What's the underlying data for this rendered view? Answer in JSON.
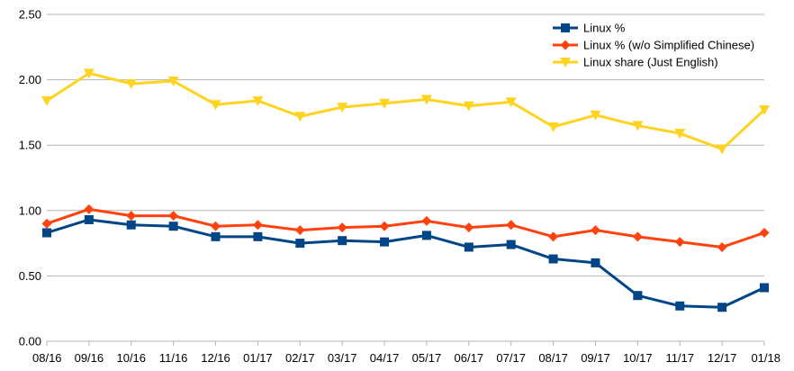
{
  "chart_data": {
    "type": "line",
    "categories": [
      "08/16",
      "09/16",
      "10/16",
      "11/16",
      "12/16",
      "01/17",
      "02/17",
      "03/17",
      "04/17",
      "05/17",
      "06/17",
      "07/17",
      "08/17",
      "09/17",
      "10/17",
      "11/17",
      "12/17",
      "01/18"
    ],
    "y_ticks": [
      "0.00",
      "0.50",
      "1.00",
      "1.50",
      "2.00",
      "2.50"
    ],
    "ylim": [
      0,
      2.5
    ],
    "grid": "horizontal",
    "legend_position": "top-right",
    "series": [
      {
        "name": "Linux %",
        "color": "#004586",
        "marker": "square",
        "values": [
          0.83,
          0.93,
          0.89,
          0.88,
          0.8,
          0.8,
          0.75,
          0.77,
          0.76,
          0.81,
          0.72,
          0.74,
          0.63,
          0.6,
          0.35,
          0.27,
          0.26,
          0.41
        ]
      },
      {
        "name": "Linux % (w/o Simplified Chinese)",
        "color": "#ff420e",
        "marker": "diamond",
        "values": [
          0.9,
          1.01,
          0.96,
          0.96,
          0.88,
          0.89,
          0.85,
          0.87,
          0.88,
          0.92,
          0.87,
          0.89,
          0.8,
          0.85,
          0.8,
          0.76,
          0.72,
          0.83
        ]
      },
      {
        "name": "Linux share (Just English)",
        "color": "#ffd320",
        "marker": "triangle-down",
        "values": [
          1.84,
          2.05,
          1.97,
          1.99,
          1.81,
          1.84,
          1.72,
          1.79,
          1.82,
          1.85,
          1.8,
          1.83,
          1.64,
          1.73,
          1.65,
          1.59,
          1.47,
          1.77
        ]
      }
    ]
  }
}
